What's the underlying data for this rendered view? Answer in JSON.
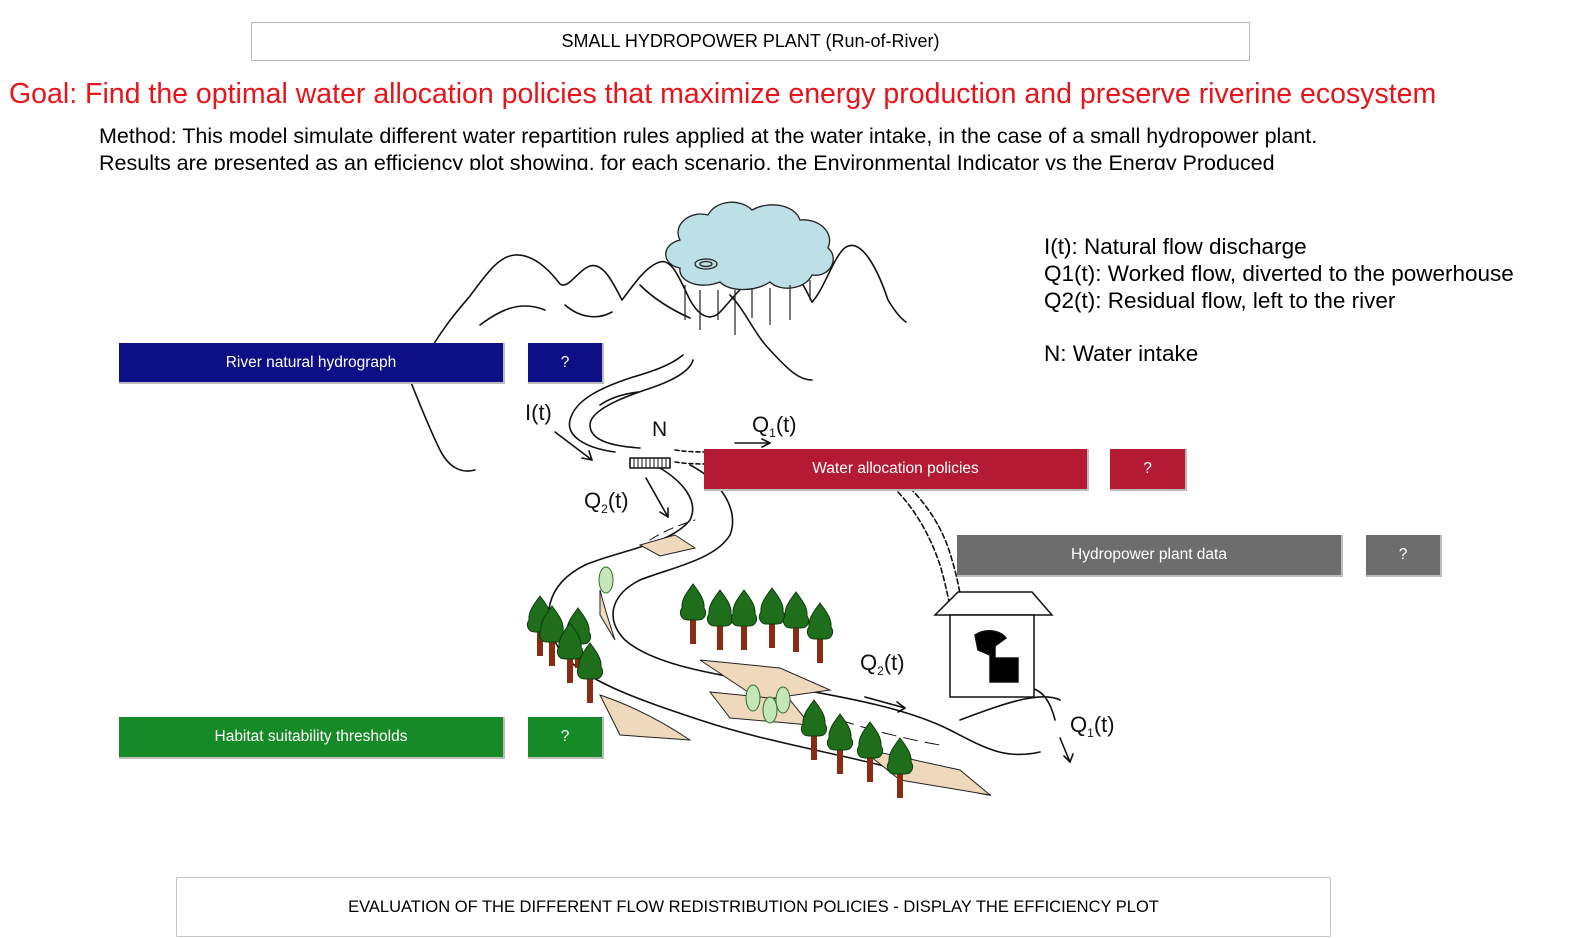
{
  "header": {
    "title": "SMALL HYDROPOWER PLANT (Run-of-River)"
  },
  "goal": "Goal: Find the optimal water allocation policies that maximize energy production and preserve riverine ecosystem",
  "method": {
    "line1": "Method: This model simulate different water repartition rules applied at the water intake, in the case of a small hydropower plant.",
    "line2": "Results are presented as an efficiency plot showing, for each scenario, the Environmental Indicator vs the Energy Produced"
  },
  "legend": {
    "items": [
      "I(t): Natural flow discharge",
      "Q1(t): Worked flow, diverted to the powerhouse",
      "Q2(t): Residual flow, left to the river",
      "N: Water intake"
    ]
  },
  "buttons": {
    "river_hydrograph": "River natural hydrograph",
    "water_allocation": "Water allocation policies",
    "hydropower_data": "Hydropower plant data",
    "habitat_thresholds": "Habitat suitability thresholds",
    "help": "?"
  },
  "diagram_labels": {
    "inflow": "I(t)",
    "intake": "N",
    "worked_flow": "Q",
    "residual_flow": "Q",
    "sub1": "1",
    "sub2": "2",
    "t_suffix": "(t)"
  },
  "evaluate_button": "EVALUATION OF THE DIFFERENT FLOW REDISTRIBUTION POLICIES - DISPLAY THE EFFICIENCY PLOT",
  "colors": {
    "goal_red": "#e8141a",
    "navy": "#0d0f86",
    "crimson": "#b51a35",
    "grey": "#6d6d6d",
    "green": "#178a28",
    "cloud": "#bde0e6",
    "sand": "#efd9bc"
  }
}
